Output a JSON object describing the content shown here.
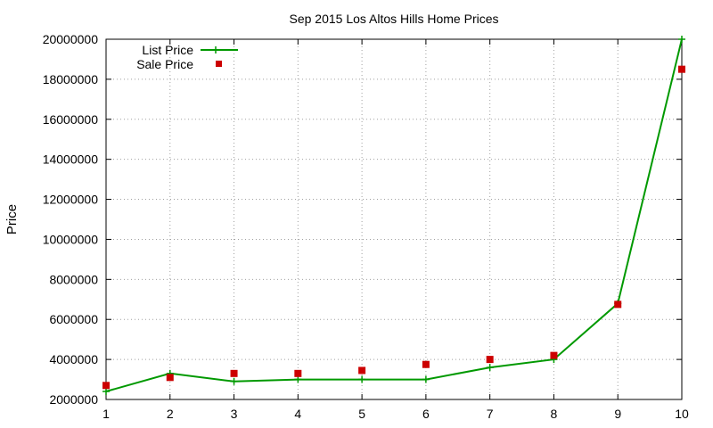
{
  "chart_data": {
    "type": "line",
    "title": "Sep 2015 Los Altos Hills Home Prices",
    "xlabel": "",
    "ylabel": "Price",
    "x": [
      1,
      2,
      3,
      4,
      5,
      6,
      7,
      8,
      9,
      10
    ],
    "xticks": [
      "1",
      "2",
      "3",
      "4",
      "5",
      "6",
      "7",
      "8",
      "9",
      "10"
    ],
    "yticks": [
      "2000000",
      "4000000",
      "6000000",
      "8000000",
      "10000000",
      "12000000",
      "14000000",
      "16000000",
      "18000000",
      "20000000"
    ],
    "xlim": [
      1,
      10
    ],
    "ylim": [
      2000000,
      20000000
    ],
    "grid": true,
    "legend_position": "top-left",
    "series": [
      {
        "name": "List Price",
        "style": "line-with-plus-markers",
        "color": "#009900",
        "values": [
          2400000,
          3300000,
          2900000,
          3000000,
          3000000,
          3000000,
          3600000,
          4000000,
          6800000,
          20000000
        ]
      },
      {
        "name": "Sale Price",
        "style": "square-points",
        "color": "#cc0000",
        "values": [
          2700000,
          3100000,
          3300000,
          3300000,
          3450000,
          3750000,
          4000000,
          4200000,
          6750000,
          18500000
        ]
      }
    ]
  }
}
